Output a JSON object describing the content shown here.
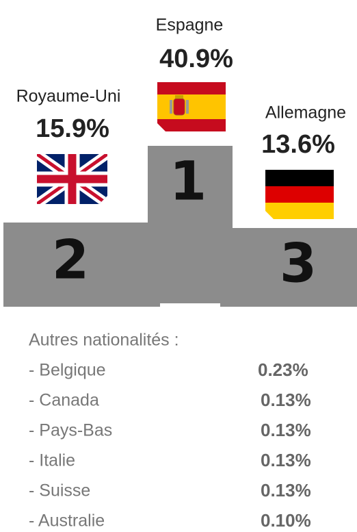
{
  "podium": [
    {
      "rank": "1",
      "country": "Espagne",
      "percent": "40.9%"
    },
    {
      "rank": "2",
      "country": "Royaume-Uni",
      "percent": "15.9%"
    },
    {
      "rank": "3",
      "country": "Allemagne",
      "percent": "13.6%"
    }
  ],
  "others": {
    "title": "Autres nationalités :",
    "rows": [
      {
        "name": "- Belgique",
        "percent": "0.23%"
      },
      {
        "name": "- Canada",
        "percent": "0.13%"
      },
      {
        "name": "- Pays-Bas",
        "percent": "0.13%"
      },
      {
        "name": "- Italie",
        "percent": "0.13%"
      },
      {
        "name": "- Suisse",
        "percent": "0.13%"
      },
      {
        "name": "- Australie",
        "percent": "0.10%"
      }
    ]
  }
}
